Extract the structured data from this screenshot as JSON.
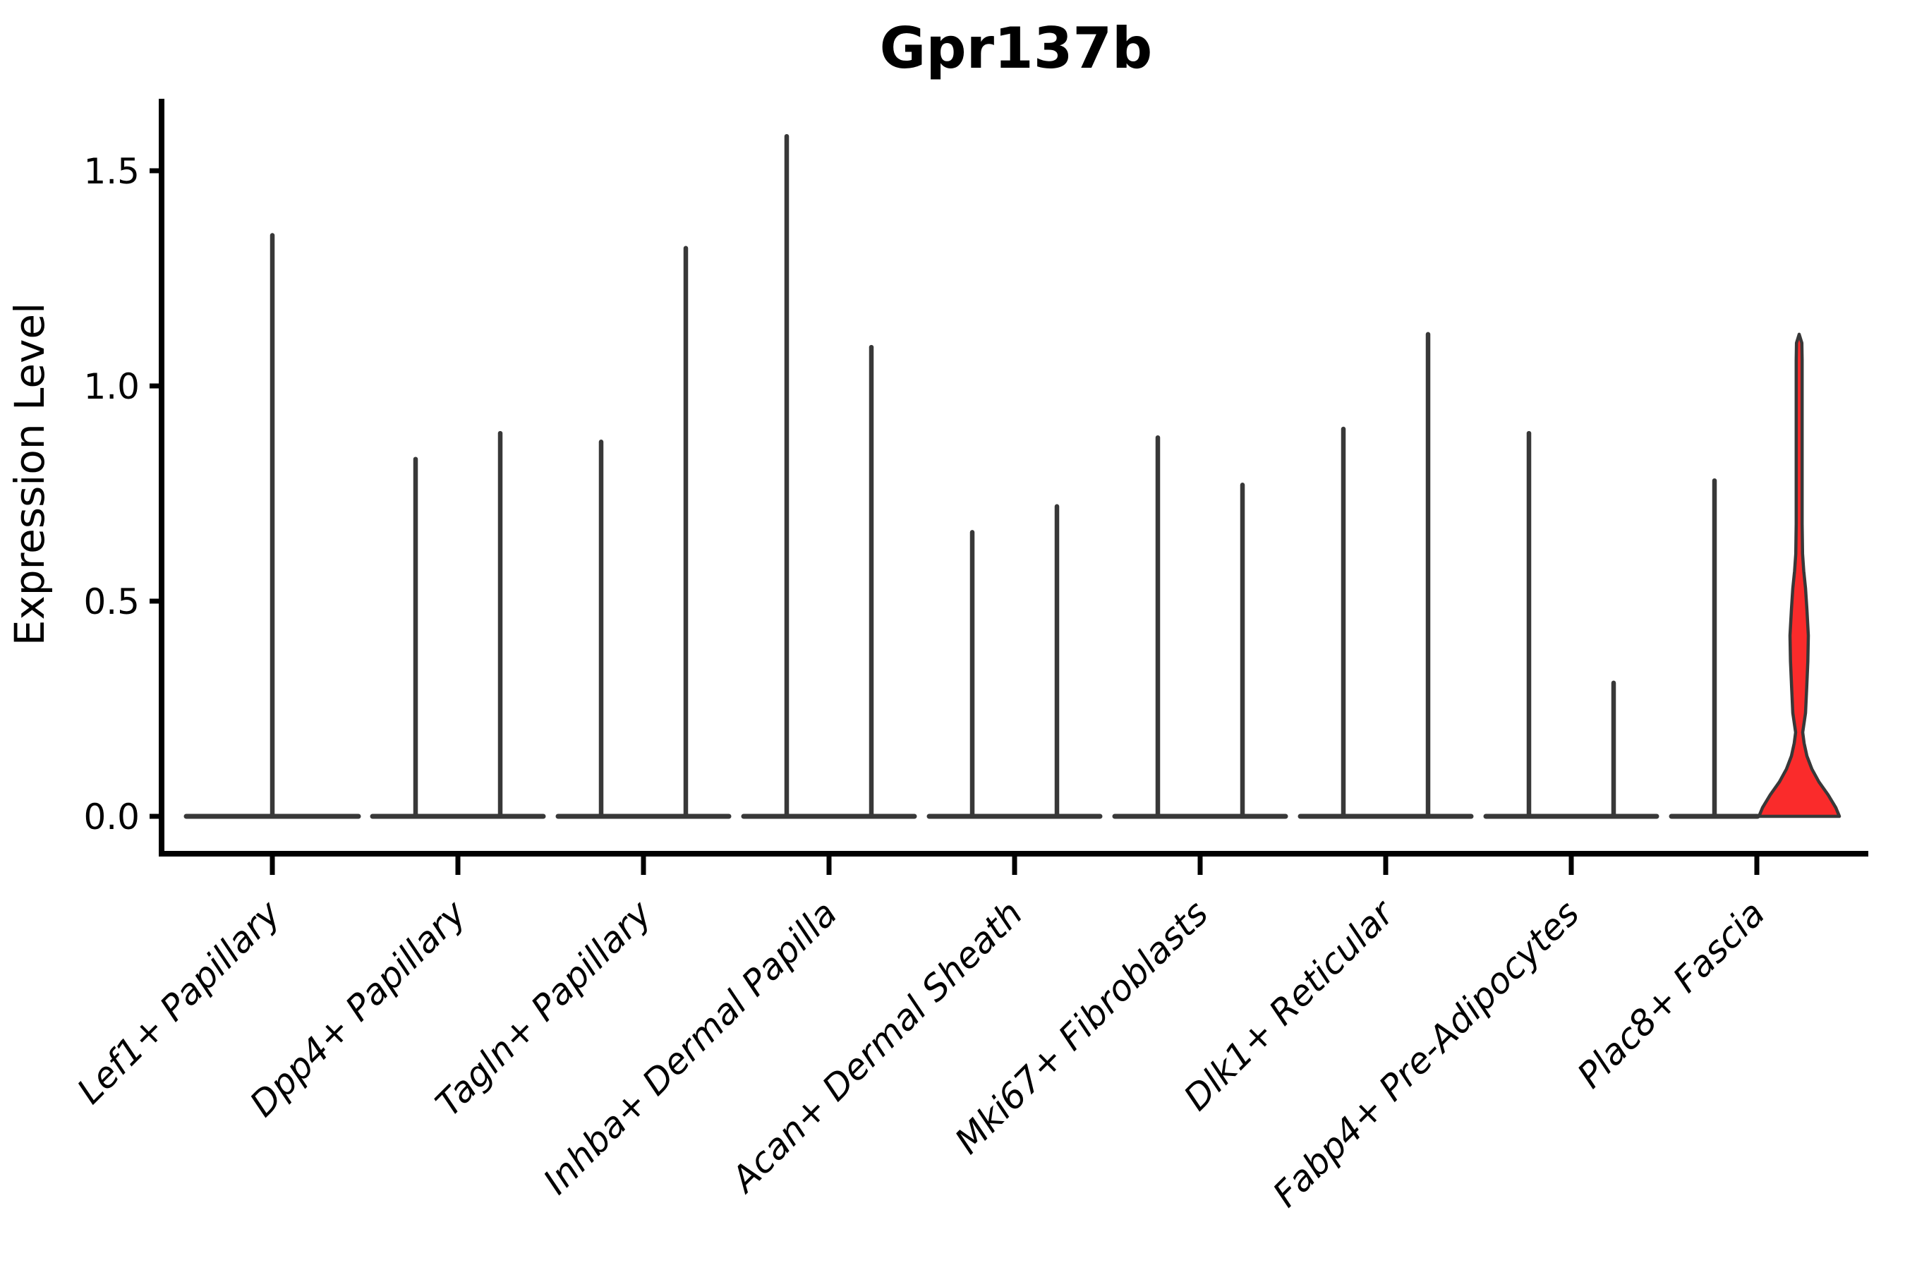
{
  "title": "Gpr137b",
  "y_axis": {
    "label": "Expression Level",
    "ticks": [
      "0.0",
      "0.5",
      "1.0",
      "1.5"
    ]
  },
  "x_axis": {
    "categories": [
      "Lef1+ Papillary",
      "Dpp4+ Papillary",
      "Tagln+ Papillary",
      "Inhba+ Dermal Papilla",
      "Acan+ Dermal Sheath",
      "Mki67+ Fibroblasts",
      "Dlk1+ Reticular",
      "Fabp4+ Pre-Adipocytes",
      "Plac8+ Fascia"
    ]
  },
  "chart_data": {
    "type": "violin",
    "title": "Gpr137b",
    "xlabel": "",
    "ylabel": "Expression Level",
    "ylim": [
      0,
      1.66
    ],
    "yticks": [
      0.0,
      0.5,
      1.0,
      1.5
    ],
    "grid": false,
    "legend": "none",
    "categories": [
      "Lef1+ Papillary",
      "Dpp4+ Papillary",
      "Tagln+ Papillary",
      "Inhba+ Dermal Papilla",
      "Acan+ Dermal Sheath",
      "Mki67+ Fibroblasts",
      "Dlk1+ Reticular",
      "Fabp4+ Pre-Adipocytes",
      "Plac8+ Fascia"
    ],
    "violins": [
      {
        "category_index": 0,
        "category": "Lef1+ Papillary",
        "slot": "single",
        "max_expression": 1.35,
        "body": "collapsed"
      },
      {
        "category_index": 1,
        "category": "Dpp4+ Papillary",
        "slot": "left",
        "max_expression": 0.83,
        "body": "collapsed"
      },
      {
        "category_index": 1,
        "category": "Dpp4+ Papillary",
        "slot": "right",
        "max_expression": 0.89,
        "body": "collapsed"
      },
      {
        "category_index": 2,
        "category": "Tagln+ Papillary",
        "slot": "left",
        "max_expression": 0.87,
        "body": "collapsed"
      },
      {
        "category_index": 2,
        "category": "Tagln+ Papillary",
        "slot": "right",
        "max_expression": 1.32,
        "body": "collapsed"
      },
      {
        "category_index": 3,
        "category": "Inhba+ Dermal Papilla",
        "slot": "left",
        "max_expression": 1.58,
        "body": "collapsed"
      },
      {
        "category_index": 3,
        "category": "Inhba+ Dermal Papilla",
        "slot": "right",
        "max_expression": 1.09,
        "body": "collapsed"
      },
      {
        "category_index": 4,
        "category": "Acan+ Dermal Sheath",
        "slot": "left",
        "max_expression": 0.66,
        "body": "collapsed"
      },
      {
        "category_index": 4,
        "category": "Acan+ Dermal Sheath",
        "slot": "right",
        "max_expression": 0.72,
        "body": "collapsed"
      },
      {
        "category_index": 5,
        "category": "Mki67+ Fibroblasts",
        "slot": "left",
        "max_expression": 0.88,
        "body": "collapsed"
      },
      {
        "category_index": 5,
        "category": "Mki67+ Fibroblasts",
        "slot": "right",
        "max_expression": 0.77,
        "body": "collapsed"
      },
      {
        "category_index": 6,
        "category": "Dlk1+ Reticular",
        "slot": "left",
        "max_expression": 0.9,
        "body": "collapsed"
      },
      {
        "category_index": 6,
        "category": "Dlk1+ Reticular",
        "slot": "right",
        "max_expression": 1.12,
        "body": "collapsed"
      },
      {
        "category_index": 7,
        "category": "Fabp4+ Pre-Adipocytes",
        "slot": "left",
        "max_expression": 0.89,
        "body": "collapsed"
      },
      {
        "category_index": 7,
        "category": "Fabp4+ Pre-Adipocytes",
        "slot": "right",
        "max_expression": 0.31,
        "body": "collapsed"
      },
      {
        "category_index": 8,
        "category": "Plac8+ Fascia",
        "slot": "left",
        "max_expression": 0.78,
        "body": "collapsed"
      },
      {
        "category_index": 8,
        "category": "Plac8+ Fascia",
        "slot": "right",
        "max_expression": 1.12,
        "body": "density",
        "fill": "#fa2b2b",
        "density_profile_value_halfwidth": [
          [
            0.0,
            57
          ],
          [
            0.02,
            52
          ],
          [
            0.05,
            41
          ],
          [
            0.08,
            28
          ],
          [
            0.11,
            18
          ],
          [
            0.14,
            11
          ],
          [
            0.17,
            7
          ],
          [
            0.195,
            5
          ],
          [
            0.24,
            9
          ],
          [
            0.3,
            10.7
          ],
          [
            0.36,
            12.3
          ],
          [
            0.42,
            13
          ],
          [
            0.48,
            11
          ],
          [
            0.53,
            9
          ],
          [
            0.57,
            6.5
          ],
          [
            0.61,
            4.8
          ],
          [
            0.68,
            4.2
          ],
          [
            0.8,
            4.2
          ],
          [
            0.95,
            4.2
          ],
          [
            1.06,
            4.2
          ],
          [
            1.1,
            3.8
          ],
          [
            1.12,
            0
          ]
        ]
      }
    ],
    "colors": {
      "violin_stroke": "#383838",
      "highlight_fill": "#fa2b2b",
      "axis": "#000000"
    }
  }
}
